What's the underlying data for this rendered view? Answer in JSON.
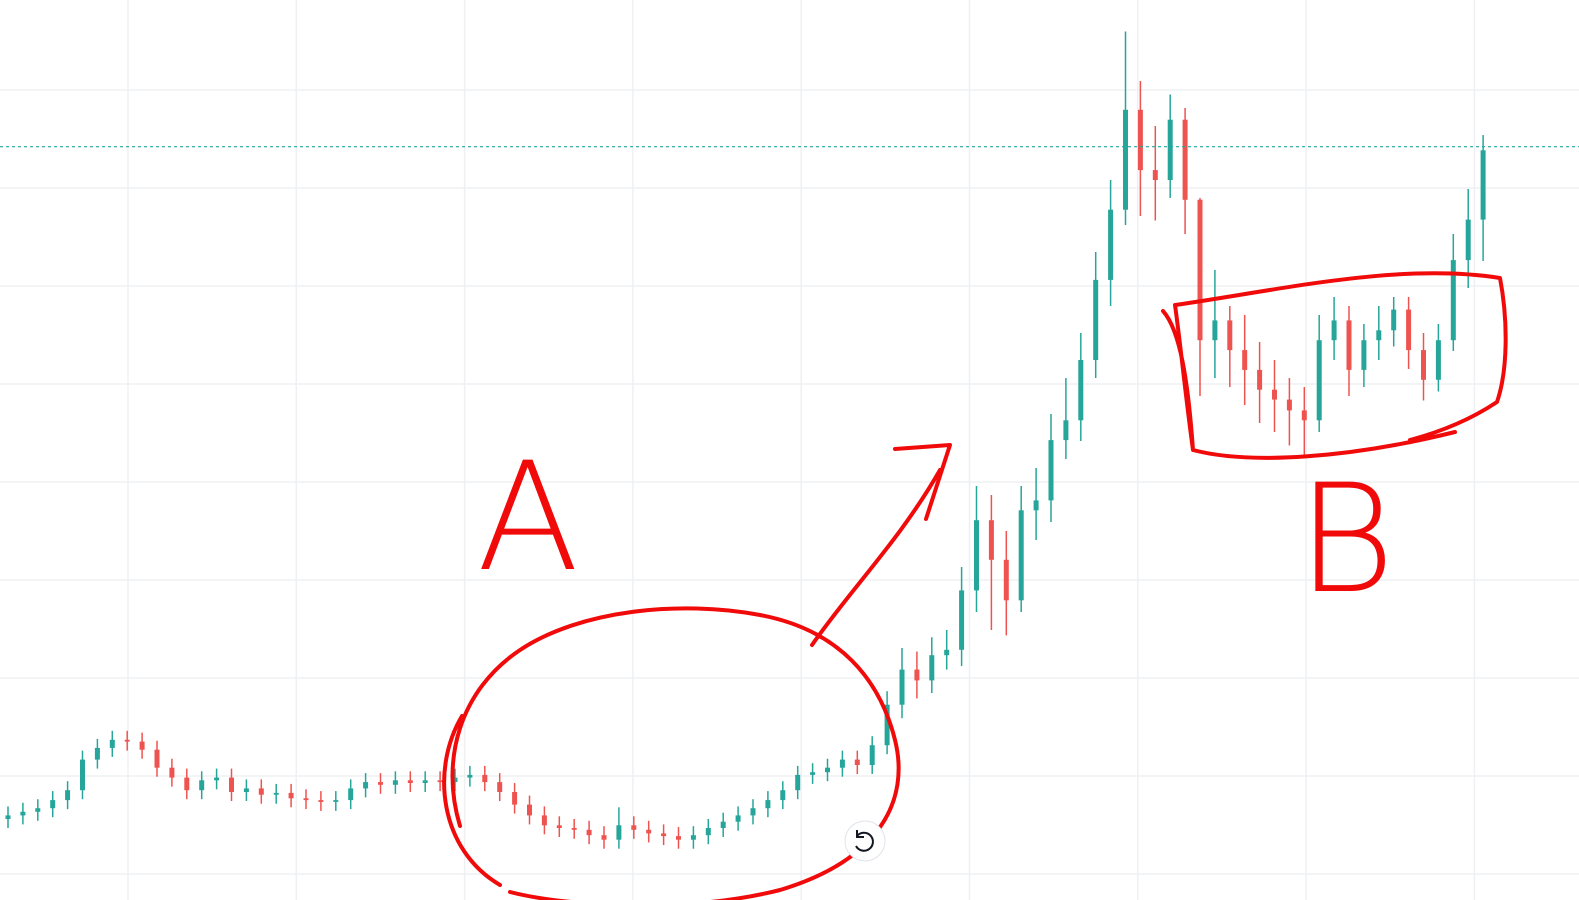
{
  "chart_data": {
    "type": "candlestick",
    "annotations": [
      "A",
      "B"
    ],
    "up_color": "#26a69a",
    "down_color": "#ef5350",
    "ylim": [
      0,
      100
    ],
    "price_line": 83.7,
    "open": [
      9.0,
      9.4,
      9.8,
      10.2,
      11.1,
      12.2,
      15.6,
      16.9,
      17.8,
      17.6,
      16.7,
      14.7,
      13.6,
      12.2,
      13.3,
      13.6,
      12.0,
      12.4,
      11.7,
      11.9,
      11.3,
      11.1,
      10.9,
      11.1,
      12.4,
      13.1,
      12.8,
      13.3,
      13.0,
      13.3,
      13.1,
      13.6,
      13.9,
      13.1,
      12.0,
      10.6,
      9.4,
      8.3,
      8.0,
      7.8,
      7.2,
      6.7,
      8.3,
      7.8,
      7.4,
      7.1,
      6.7,
      7.2,
      8.0,
      8.7,
      9.4,
      10.2,
      11.1,
      12.2,
      13.9,
      14.2,
      14.7,
      15.6,
      15.0,
      17.2,
      21.7,
      25.6,
      24.4,
      27.2,
      27.8,
      34.4,
      42.2,
      37.8,
      33.3,
      43.3,
      44.4,
      51.1,
      53.3,
      60.0,
      68.9,
      76.7,
      87.8,
      81.1,
      80.0,
      86.7,
      77.8,
      62.2,
      64.4,
      61.1,
      58.9,
      56.7,
      55.6,
      54.4,
      53.3,
      62.2,
      64.4,
      58.9,
      62.2,
      63.3,
      65.6,
      61.1,
      57.8,
      62.2,
      71.1,
      75.6
    ],
    "high": [
      10.4,
      10.8,
      11.2,
      12.1,
      13.2,
      16.6,
      17.9,
      18.8,
      18.8,
      18.6,
      17.7,
      15.7,
      14.6,
      14.3,
      14.6,
      14.6,
      13.4,
      13.4,
      12.9,
      12.9,
      12.3,
      12.1,
      12.1,
      13.4,
      14.1,
      14.1,
      14.3,
      14.3,
      14.3,
      14.3,
      14.6,
      14.9,
      14.9,
      14.1,
      13.0,
      11.6,
      10.4,
      9.3,
      9.0,
      8.8,
      8.2,
      10.3,
      9.3,
      8.8,
      8.4,
      8.1,
      8.2,
      9.0,
      9.7,
      10.4,
      11.2,
      12.1,
      13.2,
      14.9,
      15.2,
      15.7,
      16.6,
      16.6,
      18.2,
      23.2,
      28.0,
      27.6,
      29.2,
      30.0,
      37.0,
      46.0,
      45.0,
      41.0,
      46.0,
      48.0,
      54.0,
      58.0,
      63.0,
      72.0,
      80.0,
      96.5,
      91.0,
      86.0,
      89.5,
      88.0,
      78.0,
      70.0,
      66.0,
      65.0,
      62.0,
      60.0,
      58.0,
      57.0,
      65.0,
      67.0,
      66.0,
      64.0,
      66.0,
      67.0,
      67.0,
      63.0,
      64.0,
      74.0,
      79.0,
      85.0
    ],
    "low": [
      8.0,
      8.4,
      8.8,
      9.2,
      10.1,
      11.2,
      14.6,
      15.9,
      16.6,
      15.7,
      13.7,
      12.6,
      11.2,
      11.2,
      12.3,
      11.0,
      11.0,
      10.7,
      10.7,
      10.3,
      10.1,
      9.9,
      9.9,
      10.1,
      11.4,
      11.8,
      11.8,
      12.0,
      12.0,
      12.1,
      12.1,
      12.6,
      12.1,
      11.0,
      9.6,
      8.4,
      7.3,
      7.0,
      6.8,
      6.2,
      5.7,
      5.7,
      6.8,
      6.4,
      6.1,
      5.7,
      5.7,
      6.2,
      7.0,
      7.7,
      8.4,
      9.2,
      10.1,
      11.2,
      12.9,
      13.2,
      13.7,
      14.0,
      14.0,
      16.2,
      20.2,
      22.4,
      23.0,
      25.6,
      26.0,
      32.0,
      30.0,
      29.4,
      32.0,
      40.0,
      42.0,
      49.0,
      51.0,
      58.0,
      66.0,
      75.0,
      76.0,
      75.5,
      78.0,
      74.0,
      56.0,
      58.0,
      57.0,
      55.0,
      53.0,
      52.0,
      50.5,
      49.5,
      52.0,
      60.0,
      56.0,
      57.0,
      60.0,
      61.5,
      59.0,
      55.5,
      56.5,
      61.0,
      68.0,
      71.0
    ],
    "close": [
      9.4,
      9.8,
      10.2,
      11.1,
      12.2,
      15.6,
      16.9,
      17.8,
      17.6,
      16.7,
      14.7,
      13.6,
      12.2,
      13.3,
      13.6,
      12.0,
      12.4,
      11.7,
      11.9,
      11.3,
      11.1,
      10.9,
      11.1,
      12.4,
      13.1,
      12.8,
      13.3,
      13.0,
      13.3,
      13.1,
      13.6,
      13.9,
      13.1,
      12.0,
      10.6,
      9.4,
      8.3,
      8.0,
      7.8,
      7.2,
      6.7,
      8.3,
      7.8,
      7.4,
      7.1,
      6.7,
      7.2,
      8.0,
      8.7,
      9.4,
      10.2,
      11.1,
      12.2,
      13.9,
      14.2,
      14.7,
      15.6,
      15.0,
      17.2,
      21.7,
      25.6,
      24.4,
      27.2,
      27.8,
      34.4,
      42.2,
      37.8,
      33.3,
      43.3,
      44.4,
      51.1,
      53.3,
      60.0,
      68.9,
      76.7,
      87.8,
      81.1,
      80.0,
      86.7,
      77.8,
      62.2,
      64.4,
      61.1,
      58.9,
      56.7,
      55.6,
      54.4,
      53.3,
      62.2,
      64.4,
      58.9,
      62.2,
      63.3,
      65.6,
      61.1,
      57.8,
      62.2,
      71.1,
      75.6,
      83.3
    ]
  }
}
